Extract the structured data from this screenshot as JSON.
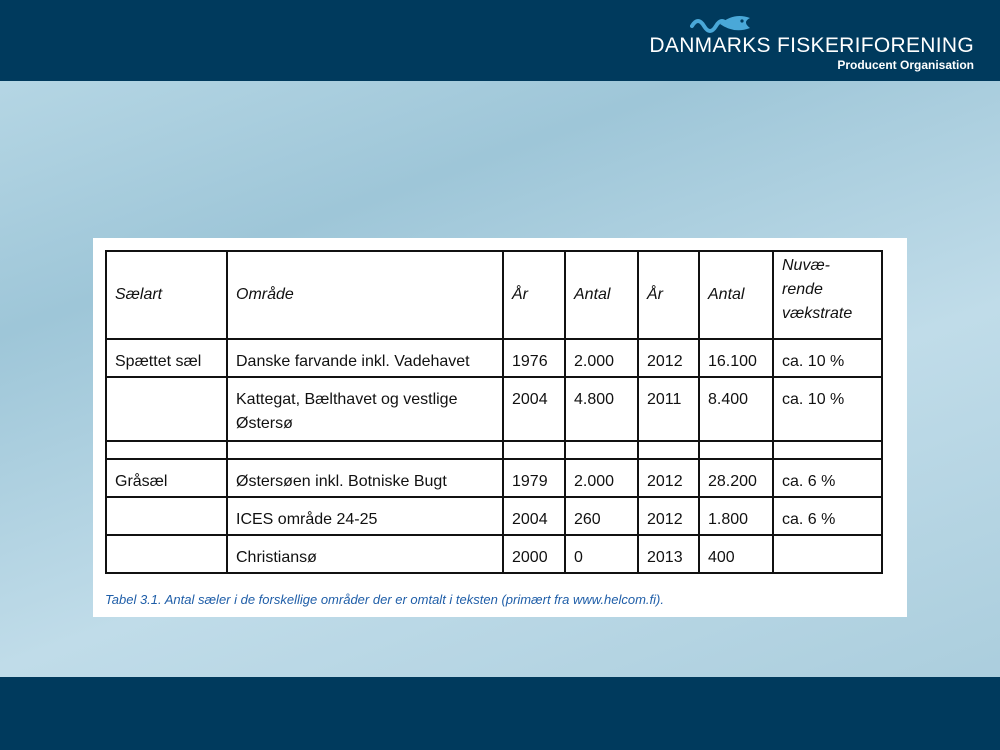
{
  "header": {
    "org_name": "DANMARKS FISKERIFORENING",
    "org_subtitle": "Producent Organisation",
    "logo_icon": "fish-wave-icon"
  },
  "table": {
    "columns": [
      "Sælart",
      "Område",
      "År",
      "Antal",
      "År",
      "Antal",
      "Nuvæ-rende vækstrate"
    ],
    "growth_header_lines": [
      "Nuvæ-",
      "rende",
      "vækstrate"
    ],
    "rows": [
      {
        "species": "Spættet sæl",
        "area": "Danske farvande inkl. Vadehavet",
        "year1": "1976",
        "count1": "2.000",
        "year2": "2012",
        "count2": "16.100",
        "growth": "ca. 10 %"
      },
      {
        "species": "",
        "area": "Kattegat, Bælthavet og vestlige Østersø",
        "year1": "2004",
        "count1": "4.800",
        "year2": "2011",
        "count2": "8.400",
        "growth": "ca. 10 %"
      },
      {
        "species": "",
        "area": "",
        "year1": "",
        "count1": "",
        "year2": "",
        "count2": "",
        "growth": ""
      },
      {
        "species": "Gråsæl",
        "area": "Østersøen inkl. Botniske Bugt",
        "year1": "1979",
        "count1": "2.000",
        "year2": "2012",
        "count2": "28.200",
        "growth": "ca. 6 %"
      },
      {
        "species": "",
        "area": "ICES område 24-25",
        "year1": "2004",
        "count1": "260",
        "year2": "2012",
        "count2": "1.800",
        "growth": "ca. 6 %"
      },
      {
        "species": "",
        "area": "Christiansø",
        "year1": "2000",
        "count1": "0",
        "year2": "2013",
        "count2": "400",
        "growth": ""
      }
    ]
  },
  "caption": "Tabel 3.1. Antal sæler i de forskellige områder der er omtalt i teksten (primært fra www.helcom.fi).",
  "colors": {
    "bar": "#003a5d",
    "background": "#a9cfe0",
    "caption": "#1f5ea8",
    "logo_accent": "#4aa8d8"
  }
}
